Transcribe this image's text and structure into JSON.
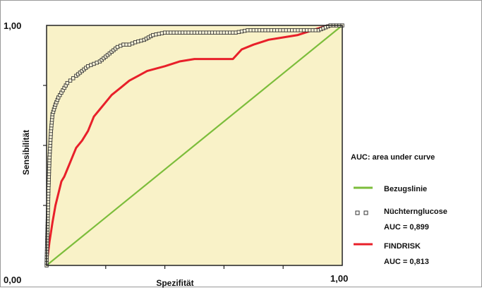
{
  "chart_data": {
    "type": "line",
    "title": "",
    "xlabel": "Spezifität",
    "ylabel": "Sensibilität",
    "xlim": [
      0,
      1
    ],
    "ylim": [
      0,
      1
    ],
    "x_tick_labels": {
      "start": "0,00",
      "end": "1,00"
    },
    "y_tick_labels": {
      "start": "0,00",
      "end": "1,00"
    },
    "x_minor_ticks": [
      0.2,
      0.4,
      0.6,
      0.8
    ],
    "y_minor_ticks": [
      0.25,
      0.5,
      0.75
    ],
    "plot_background": "#f9f2c8",
    "legend_position": "right",
    "legend": {
      "heading": "AUC: area under curve",
      "items": [
        {
          "label": "Bezugslinie",
          "sub": "",
          "marker": "line",
          "color": "#7cbd3b"
        },
        {
          "label": "Nüchternglucose",
          "sub": "AUC = 0,899",
          "marker": "square",
          "color": "#333333"
        },
        {
          "label": "FINDRISK",
          "sub": "AUC = 0,813",
          "marker": "line",
          "color": "#e8202a"
        }
      ]
    },
    "series": [
      {
        "name": "Bezugslinie",
        "style": "line",
        "color": "#7cbd3b",
        "x": [
          0,
          1
        ],
        "y": [
          0,
          1
        ]
      },
      {
        "name": "Nüchternglucose",
        "style": "square-markers",
        "color": "#333333",
        "x": [
          0,
          0.003,
          0.006,
          0.01,
          0.015,
          0.02,
          0.03,
          0.04,
          0.05,
          0.06,
          0.07,
          0.08,
          0.09,
          0.1,
          0.12,
          0.14,
          0.16,
          0.18,
          0.2,
          0.22,
          0.24,
          0.26,
          0.28,
          0.3,
          0.33,
          0.36,
          0.4,
          0.44,
          0.48,
          0.52,
          0.56,
          0.6,
          0.64,
          0.68,
          0.72,
          0.76,
          0.8,
          0.84,
          0.88,
          0.92,
          0.96,
          1.0
        ],
        "y": [
          0,
          0.15,
          0.3,
          0.45,
          0.56,
          0.63,
          0.67,
          0.7,
          0.72,
          0.74,
          0.76,
          0.77,
          0.78,
          0.79,
          0.81,
          0.83,
          0.84,
          0.85,
          0.87,
          0.89,
          0.91,
          0.92,
          0.92,
          0.93,
          0.94,
          0.96,
          0.97,
          0.97,
          0.97,
          0.97,
          0.97,
          0.97,
          0.97,
          0.98,
          0.98,
          0.98,
          0.98,
          0.98,
          0.98,
          0.98,
          1.0,
          1.0
        ]
      },
      {
        "name": "FINDRISK",
        "style": "line",
        "color": "#e8202a",
        "x": [
          0,
          0.01,
          0.02,
          0.03,
          0.04,
          0.05,
          0.06,
          0.07,
          0.08,
          0.09,
          0.1,
          0.12,
          0.14,
          0.16,
          0.18,
          0.2,
          0.22,
          0.25,
          0.28,
          0.31,
          0.34,
          0.37,
          0.4,
          0.45,
          0.5,
          0.55,
          0.6,
          0.63,
          0.66,
          0.7,
          0.75,
          0.8,
          0.85,
          0.9,
          0.95,
          1.0
        ],
        "y": [
          0,
          0.1,
          0.18,
          0.25,
          0.3,
          0.35,
          0.37,
          0.4,
          0.43,
          0.46,
          0.49,
          0.52,
          0.56,
          0.62,
          0.65,
          0.68,
          0.71,
          0.74,
          0.77,
          0.79,
          0.81,
          0.82,
          0.83,
          0.85,
          0.86,
          0.86,
          0.86,
          0.86,
          0.9,
          0.92,
          0.94,
          0.95,
          0.96,
          0.98,
          1.0,
          1.0
        ]
      }
    ]
  }
}
